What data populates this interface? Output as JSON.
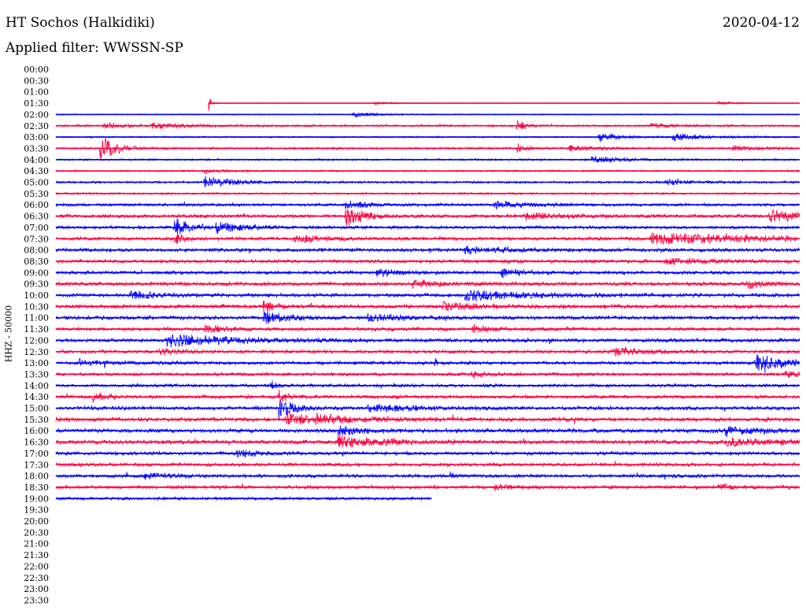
{
  "header": {
    "title": "HT Sochos (Halkidiki)",
    "date": "2020-04-12",
    "filter_label": "Applied filter:",
    "filter_value": "WWSSN-SP"
  },
  "colors": {
    "red_trace": "#ff0040",
    "blue_trace": "#0000ff",
    "text": "#000000",
    "background": "#ffffff"
  },
  "chart_data": {
    "type": "line",
    "ylabel": "HHZ - 50000",
    "time_labels": [
      "00:00",
      "00:30",
      "01:00",
      "01:30",
      "02:00",
      "02:30",
      "03:00",
      "03:30",
      "04:00",
      "04:30",
      "05:00",
      "05:30",
      "06:00",
      "06:30",
      "07:00",
      "07:30",
      "08:00",
      "08:30",
      "09:00",
      "09:30",
      "10:00",
      "10:30",
      "11:00",
      "11:30",
      "12:00",
      "12:30",
      "13:00",
      "13:30",
      "14:00",
      "14:30",
      "15:00",
      "15:30",
      "16:00",
      "16:30",
      "17:00",
      "17:30",
      "18:00",
      "18:30",
      "19:00",
      "19:30",
      "20:00",
      "20:30",
      "21:00",
      "21:30",
      "22:00",
      "22:30",
      "23:00",
      "23:30"
    ],
    "record_start_fraction": 0.205,
    "record_end_row": "19:00",
    "record_end_fraction": 0.505,
    "row_colors": {
      "01:30": "red",
      "02:00": "blue",
      "02:30": "red",
      "03:00": "blue",
      "03:30": "red",
      "04:00": "blue",
      "04:30": "red",
      "05:00": "blue",
      "05:30": "red",
      "06:00": "blue",
      "06:30": "red",
      "07:00": "blue",
      "07:30": "red",
      "08:00": "blue",
      "08:30": "red",
      "09:00": "blue",
      "09:30": "red",
      "10:00": "blue",
      "10:30": "red",
      "11:00": "blue",
      "11:30": "red",
      "12:00": "blue",
      "12:30": "red",
      "13:00": "blue",
      "13:30": "red",
      "14:00": "blue",
      "14:30": "red",
      "15:00": "blue",
      "15:30": "red",
      "16:00": "blue",
      "16:30": "red",
      "17:00": "blue",
      "17:30": "red",
      "18:00": "blue",
      "18:30": "red",
      "19:00": "blue"
    },
    "noise_level": {
      "01:30": 0.5,
      "02:00": 0.9,
      "02:30": 1.6,
      "03:00": 1.2,
      "03:30": 1.6,
      "04:00": 1.4,
      "04:30": 1.3,
      "05:00": 1.7,
      "05:30": 1.5,
      "06:00": 2.2,
      "06:30": 2.6,
      "07:00": 2.4,
      "07:30": 2.6,
      "08:00": 2.8,
      "08:30": 2.6,
      "09:00": 2.6,
      "09:30": 2.8,
      "10:00": 2.8,
      "10:30": 3.0,
      "11:00": 2.8,
      "11:30": 2.6,
      "12:00": 2.8,
      "12:30": 2.6,
      "13:00": 2.6,
      "13:30": 2.4,
      "14:00": 2.4,
      "14:30": 2.6,
      "15:00": 2.8,
      "15:30": 3.0,
      "16:00": 3.0,
      "16:30": 3.0,
      "17:00": 2.6,
      "17:30": 2.6,
      "18:00": 2.6,
      "18:30": 2.6,
      "19:00": 2.2
    },
    "events": [
      {
        "row": "01:30",
        "pos": 0.205,
        "amp": 14,
        "dur": 0.003
      },
      {
        "row": "01:30",
        "pos": 0.43,
        "amp": 2,
        "dur": 0.03
      },
      {
        "row": "01:30",
        "pos": 0.89,
        "amp": 3,
        "dur": 0.02
      },
      {
        "row": "02:00",
        "pos": 0.4,
        "amp": 4,
        "dur": 0.03
      },
      {
        "row": "02:30",
        "pos": 0.065,
        "amp": 5,
        "dur": 0.02
      },
      {
        "row": "02:30",
        "pos": 0.13,
        "amp": 4,
        "dur": 0.05
      },
      {
        "row": "02:30",
        "pos": 0.62,
        "amp": 12,
        "dur": 0.01
      },
      {
        "row": "02:30",
        "pos": 0.8,
        "amp": 4,
        "dur": 0.03
      },
      {
        "row": "03:00",
        "pos": 0.73,
        "amp": 6,
        "dur": 0.03
      },
      {
        "row": "03:00",
        "pos": 0.83,
        "amp": 6,
        "dur": 0.04
      },
      {
        "row": "03:30",
        "pos": 0.06,
        "amp": 20,
        "dur": 0.02
      },
      {
        "row": "03:30",
        "pos": 0.62,
        "amp": 8,
        "dur": 0.01
      },
      {
        "row": "03:30",
        "pos": 0.69,
        "amp": 4,
        "dur": 0.03
      },
      {
        "row": "03:30",
        "pos": 0.91,
        "amp": 4,
        "dur": 0.03
      },
      {
        "row": "04:00",
        "pos": 0.72,
        "amp": 5,
        "dur": 0.04
      },
      {
        "row": "04:30",
        "pos": 0.2,
        "amp": 4,
        "dur": 0.02
      },
      {
        "row": "05:00",
        "pos": 0.2,
        "amp": 8,
        "dur": 0.04
      },
      {
        "row": "05:00",
        "pos": 0.82,
        "amp": 5,
        "dur": 0.03
      },
      {
        "row": "06:00",
        "pos": 0.39,
        "amp": 6,
        "dur": 0.03
      },
      {
        "row": "06:00",
        "pos": 0.59,
        "amp": 5,
        "dur": 0.04
      },
      {
        "row": "06:30",
        "pos": 0.39,
        "amp": 16,
        "dur": 0.02
      },
      {
        "row": "06:30",
        "pos": 0.63,
        "amp": 5,
        "dur": 0.06
      },
      {
        "row": "06:30",
        "pos": 0.96,
        "amp": 9,
        "dur": 0.04
      },
      {
        "row": "07:00",
        "pos": 0.16,
        "amp": 14,
        "dur": 0.02
      },
      {
        "row": "07:00",
        "pos": 0.215,
        "amp": 10,
        "dur": 0.03
      },
      {
        "row": "07:30",
        "pos": 0.16,
        "amp": 10,
        "dur": 0.01
      },
      {
        "row": "07:30",
        "pos": 0.32,
        "amp": 5,
        "dur": 0.04
      },
      {
        "row": "07:30",
        "pos": 0.8,
        "amp": 8,
        "dur": 0.16
      },
      {
        "row": "08:00",
        "pos": 0.55,
        "amp": 5,
        "dur": 0.05
      },
      {
        "row": "08:30",
        "pos": 0.82,
        "amp": 5,
        "dur": 0.06
      },
      {
        "row": "09:00",
        "pos": 0.43,
        "amp": 6,
        "dur": 0.03
      },
      {
        "row": "09:00",
        "pos": 0.6,
        "amp": 6,
        "dur": 0.03
      },
      {
        "row": "09:30",
        "pos": 0.48,
        "amp": 5,
        "dur": 0.04
      },
      {
        "row": "09:30",
        "pos": 0.93,
        "amp": 5,
        "dur": 0.03
      },
      {
        "row": "10:00",
        "pos": 0.1,
        "amp": 6,
        "dur": 0.03
      },
      {
        "row": "10:00",
        "pos": 0.55,
        "amp": 9,
        "dur": 0.07
      },
      {
        "row": "10:30",
        "pos": 0.28,
        "amp": 12,
        "dur": 0.01
      },
      {
        "row": "10:30",
        "pos": 0.52,
        "amp": 6,
        "dur": 0.04
      },
      {
        "row": "11:00",
        "pos": 0.28,
        "amp": 9,
        "dur": 0.03
      },
      {
        "row": "11:00",
        "pos": 0.42,
        "amp": 5,
        "dur": 0.05
      },
      {
        "row": "11:30",
        "pos": 0.2,
        "amp": 5,
        "dur": 0.03
      },
      {
        "row": "11:30",
        "pos": 0.56,
        "amp": 5,
        "dur": 0.03
      },
      {
        "row": "12:00",
        "pos": 0.15,
        "amp": 9,
        "dur": 0.08
      },
      {
        "row": "12:30",
        "pos": 0.14,
        "amp": 5,
        "dur": 0.02
      },
      {
        "row": "12:30",
        "pos": 0.75,
        "amp": 7,
        "dur": 0.03
      },
      {
        "row": "13:00",
        "pos": 0.03,
        "amp": 5,
        "dur": 0.04
      },
      {
        "row": "13:00",
        "pos": 0.51,
        "amp": 6,
        "dur": 0.003
      },
      {
        "row": "13:00",
        "pos": 0.94,
        "amp": 13,
        "dur": 0.04
      },
      {
        "row": "13:30",
        "pos": 0.56,
        "amp": 5,
        "dur": 0.02
      },
      {
        "row": "13:30",
        "pos": 0.98,
        "amp": 6,
        "dur": 0.02
      },
      {
        "row": "14:00",
        "pos": 0.29,
        "amp": 6,
        "dur": 0.01
      },
      {
        "row": "14:30",
        "pos": 0.05,
        "amp": 6,
        "dur": 0.02
      },
      {
        "row": "14:30",
        "pos": 0.3,
        "amp": 11,
        "dur": 0.01
      },
      {
        "row": "15:00",
        "pos": 0.3,
        "amp": 13,
        "dur": 0.02
      },
      {
        "row": "15:00",
        "pos": 0.42,
        "amp": 6,
        "dur": 0.05
      },
      {
        "row": "15:30",
        "pos": 0.31,
        "amp": 12,
        "dur": 0.03
      },
      {
        "row": "15:30",
        "pos": 0.35,
        "amp": 6,
        "dur": 0.06
      },
      {
        "row": "16:00",
        "pos": 0.38,
        "amp": 7,
        "dur": 0.03
      },
      {
        "row": "16:00",
        "pos": 0.9,
        "amp": 6,
        "dur": 0.05
      },
      {
        "row": "16:30",
        "pos": 0.38,
        "amp": 9,
        "dur": 0.06
      },
      {
        "row": "16:30",
        "pos": 0.9,
        "amp": 5,
        "dur": 0.08
      },
      {
        "row": "17:00",
        "pos": 0.24,
        "amp": 5,
        "dur": 0.03
      },
      {
        "row": "18:00",
        "pos": 0.12,
        "amp": 5,
        "dur": 0.03
      },
      {
        "row": "18:00",
        "pos": 0.53,
        "amp": 4,
        "dur": 0.01
      },
      {
        "row": "18:30",
        "pos": 0.59,
        "amp": 4,
        "dur": 0.02
      },
      {
        "row": "18:30",
        "pos": 0.89,
        "amp": 4,
        "dur": 0.02
      }
    ]
  }
}
